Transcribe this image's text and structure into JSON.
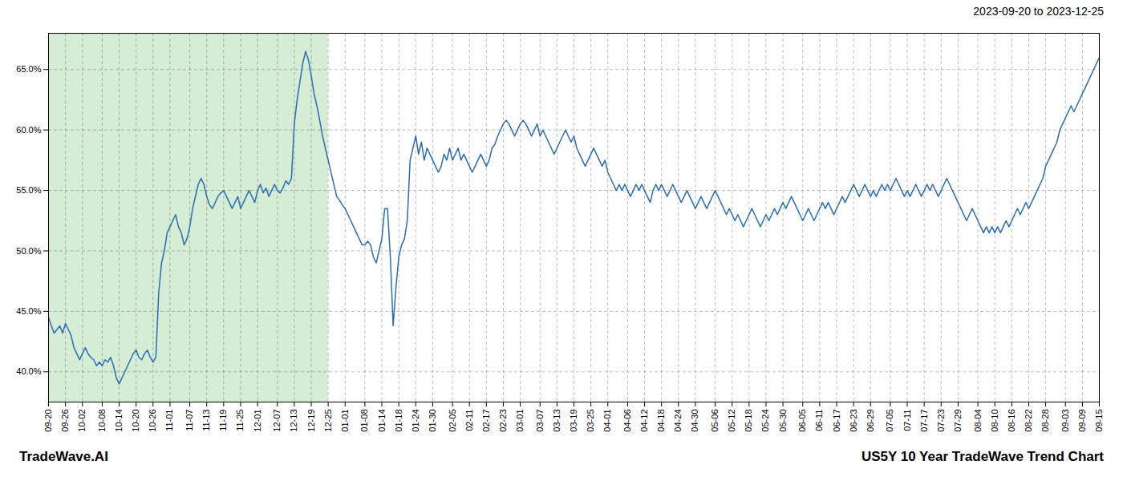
{
  "chart_data": {
    "type": "line",
    "title": "2023-09-20 to 2023-12-25",
    "annotations": [
      "TradeWave.AI",
      "US5Y 10 Year TradeWave Trend Chart"
    ],
    "color": "#2a6db5",
    "grid": true,
    "ylim": [
      37.5,
      68.0
    ],
    "yticks": [
      {
        "value": 40.0,
        "label": "40.0%"
      },
      {
        "value": 45.0,
        "label": "45.0%"
      },
      {
        "value": 50.0,
        "label": "50.0%"
      },
      {
        "value": 55.0,
        "label": "55.0%"
      },
      {
        "value": 60.0,
        "label": "60.0%"
      },
      {
        "value": 65.0,
        "label": "65.0%"
      }
    ],
    "shaded_range": {
      "from": "09-20",
      "to": "12-25",
      "color": "#d5ecd5"
    },
    "categories": [
      "09-20",
      null,
      null,
      null,
      null,
      null,
      "09-26",
      null,
      null,
      null,
      null,
      null,
      "10-02",
      null,
      null,
      null,
      null,
      null,
      null,
      "10-08",
      null,
      null,
      null,
      null,
      null,
      "10-14",
      null,
      null,
      null,
      null,
      null,
      "10-20",
      null,
      null,
      null,
      null,
      null,
      "10-26",
      null,
      null,
      null,
      null,
      null,
      "11-01",
      null,
      null,
      null,
      null,
      null,
      null,
      "11-07",
      null,
      null,
      null,
      null,
      null,
      "11-13",
      null,
      null,
      null,
      null,
      null,
      "11-19",
      null,
      null,
      null,
      null,
      null,
      "11-25",
      null,
      null,
      null,
      null,
      null,
      "12-01",
      null,
      null,
      null,
      null,
      null,
      null,
      "12-07",
      null,
      null,
      null,
      null,
      null,
      "12-13",
      null,
      null,
      null,
      null,
      null,
      "12-19",
      null,
      null,
      null,
      null,
      null,
      "12-25",
      null,
      null,
      null,
      null,
      null,
      "01-01",
      null,
      null,
      null,
      null,
      null,
      null,
      "01-08",
      null,
      null,
      null,
      null,
      null,
      "01-14",
      null,
      null,
      null,
      null,
      null,
      "01-18",
      null,
      null,
      null,
      null,
      null,
      "01-24",
      null,
      null,
      null,
      null,
      null,
      "01-30",
      null,
      null,
      null,
      null,
      null,
      null,
      "02-05",
      null,
      null,
      null,
      null,
      null,
      "02-11",
      null,
      null,
      null,
      null,
      null,
      "02-17",
      null,
      null,
      null,
      null,
      null,
      "02-23",
      null,
      null,
      null,
      null,
      null,
      "03-01",
      null,
      null,
      null,
      null,
      null,
      null,
      "03-07",
      null,
      null,
      null,
      null,
      null,
      "03-13",
      null,
      null,
      null,
      null,
      null,
      "03-19",
      null,
      null,
      null,
      null,
      null,
      "03-25",
      null,
      null,
      null,
      null,
      null,
      "04-01",
      null,
      null,
      null,
      null,
      null,
      null,
      "04-06",
      null,
      null,
      null,
      null,
      null,
      "04-12",
      null,
      null,
      null,
      null,
      null,
      "04-18",
      null,
      null,
      null,
      null,
      null,
      "04-24",
      null,
      null,
      null,
      null,
      null,
      "04-30",
      null,
      null,
      null,
      null,
      null,
      null,
      "05-06",
      null,
      null,
      null,
      null,
      null,
      "05-12",
      null,
      null,
      null,
      null,
      null,
      "05-18",
      null,
      null,
      null,
      null,
      null,
      "05-24",
      null,
      null,
      null,
      null,
      null,
      "05-30",
      null,
      null,
      null,
      null,
      null,
      null,
      "06-05",
      null,
      null,
      null,
      null,
      null,
      "06-11",
      null,
      null,
      null,
      null,
      null,
      "06-17",
      null,
      null,
      null,
      null,
      null,
      "06-23",
      null,
      null,
      null,
      null,
      null,
      "06-29",
      null,
      null,
      null,
      null,
      null,
      null,
      "07-05",
      null,
      null,
      null,
      null,
      null,
      "07-11",
      null,
      null,
      null,
      null,
      null,
      "07-17",
      null,
      null,
      null,
      null,
      null,
      "07-23",
      null,
      null,
      null,
      null,
      null,
      "07-29",
      null,
      null,
      null,
      null,
      null,
      null,
      "08-04",
      null,
      null,
      null,
      null,
      null,
      "08-10",
      null,
      null,
      null,
      null,
      null,
      "08-16",
      null,
      null,
      null,
      null,
      null,
      "08-22",
      null,
      null,
      null,
      null,
      null,
      "08-28",
      null,
      null,
      null,
      null,
      null,
      null,
      "09-03",
      null,
      null,
      null,
      null,
      null,
      "09-09",
      null,
      null,
      null,
      null,
      null,
      "09-15"
    ],
    "values": [
      44.5,
      43.8,
      43.2,
      43.5,
      43.8,
      43.2,
      44.0,
      43.5,
      43.0,
      42.0,
      41.5,
      41.0,
      41.5,
      42.0,
      41.5,
      41.2,
      41.0,
      40.5,
      40.8,
      40.5,
      41.0,
      40.8,
      41.2,
      40.5,
      39.5,
      39.0,
      39.5,
      40.0,
      40.5,
      41.0,
      41.5,
      41.8,
      41.2,
      41.0,
      41.5,
      41.8,
      41.2,
      40.8,
      41.2,
      46.5,
      49.0,
      50.0,
      51.5,
      52.0,
      52.5,
      53.0,
      52.0,
      51.5,
      50.5,
      51.0,
      52.0,
      53.5,
      54.5,
      55.5,
      56.0,
      55.5,
      54.5,
      53.8,
      53.5,
      54.0,
      54.5,
      54.8,
      55.0,
      54.5,
      54.0,
      53.5,
      54.0,
      54.5,
      53.5,
      54.0,
      54.5,
      55.0,
      54.5,
      54.0,
      55.0,
      55.5,
      54.8,
      55.2,
      54.5,
      55.0,
      55.5,
      55.0,
      54.8,
      55.2,
      55.8,
      55.5,
      56.0,
      60.5,
      62.5,
      64.0,
      65.5,
      66.5,
      65.8,
      64.5,
      63.0,
      62.0,
      60.8,
      59.5,
      58.5,
      57.5,
      56.5,
      55.5,
      54.5,
      54.2,
      53.8,
      53.5,
      53.0,
      52.5,
      52.0,
      51.5,
      51.0,
      50.5,
      50.5,
      50.8,
      50.5,
      49.5,
      49.0,
      50.0,
      51.0,
      53.5,
      53.5,
      49.5,
      43.8,
      47.0,
      49.5,
      50.5,
      51.0,
      52.5,
      57.5,
      58.5,
      59.5,
      58.0,
      59.0,
      57.5,
      58.5,
      58.0,
      57.5,
      57.0,
      56.5,
      57.0,
      58.0,
      57.5,
      58.5,
      57.5,
      58.0,
      58.5,
      57.5,
      58.0,
      57.5,
      57.0,
      56.5,
      57.0,
      57.5,
      58.0,
      57.5,
      57.0,
      57.5,
      58.5,
      58.8,
      59.5,
      60.0,
      60.5,
      60.8,
      60.5,
      60.0,
      59.5,
      60.0,
      60.5,
      60.8,
      60.5,
      60.0,
      59.5,
      60.0,
      60.5,
      59.5,
      60.0,
      59.5,
      59.0,
      58.5,
      58.0,
      58.5,
      59.0,
      59.5,
      60.0,
      59.5,
      59.0,
      59.5,
      58.5,
      58.0,
      57.5,
      57.0,
      57.5,
      58.0,
      58.5,
      58.0,
      57.5,
      57.0,
      57.5,
      56.5,
      56.0,
      55.5,
      55.0,
      55.5,
      55.0,
      55.5,
      55.0,
      54.5,
      55.0,
      55.5,
      55.0,
      55.5,
      55.0,
      54.5,
      54.0,
      55.0,
      55.5,
      55.0,
      55.5,
      55.0,
      54.5,
      55.0,
      55.5,
      55.0,
      54.5,
      54.0,
      54.5,
      55.0,
      54.5,
      54.0,
      53.5,
      54.0,
      54.5,
      54.0,
      53.5,
      54.0,
      54.5,
      55.0,
      54.5,
      54.0,
      53.5,
      53.0,
      53.5,
      53.0,
      52.5,
      53.0,
      52.5,
      52.0,
      52.5,
      53.0,
      53.5,
      53.0,
      52.5,
      52.0,
      52.5,
      53.0,
      52.5,
      53.0,
      53.5,
      53.0,
      53.5,
      54.0,
      53.5,
      54.0,
      54.5,
      54.0,
      53.5,
      53.0,
      52.5,
      53.0,
      53.5,
      53.0,
      52.5,
      53.0,
      53.5,
      54.0,
      53.5,
      54.0,
      53.5,
      53.0,
      53.5,
      54.0,
      54.5,
      54.0,
      54.5,
      55.0,
      55.5,
      55.0,
      54.5,
      55.0,
      55.5,
      55.0,
      54.5,
      55.0,
      54.5,
      55.0,
      55.5,
      55.0,
      55.5,
      55.0,
      55.5,
      56.0,
      55.5,
      55.0,
      54.5,
      55.0,
      54.5,
      55.0,
      55.5,
      55.0,
      54.5,
      55.0,
      55.5,
      55.0,
      55.5,
      55.0,
      54.5,
      55.0,
      55.5,
      56.0,
      55.5,
      55.0,
      54.5,
      54.0,
      53.5,
      53.0,
      52.5,
      53.0,
      53.5,
      53.0,
      52.5,
      52.0,
      51.5,
      52.0,
      51.5,
      52.0,
      51.5,
      52.0,
      51.5,
      52.0,
      52.5,
      52.0,
      52.5,
      53.0,
      53.5,
      53.0,
      53.5,
      54.0,
      53.5,
      54.0,
      54.5,
      55.0,
      55.5,
      56.0,
      57.0,
      57.5,
      58.0,
      58.5,
      59.0,
      60.0,
      60.5,
      61.0,
      61.5,
      62.0,
      61.5,
      62.0,
      62.5,
      63.0,
      63.5,
      64.0,
      64.5,
      65.0,
      65.5,
      66.0
    ]
  }
}
